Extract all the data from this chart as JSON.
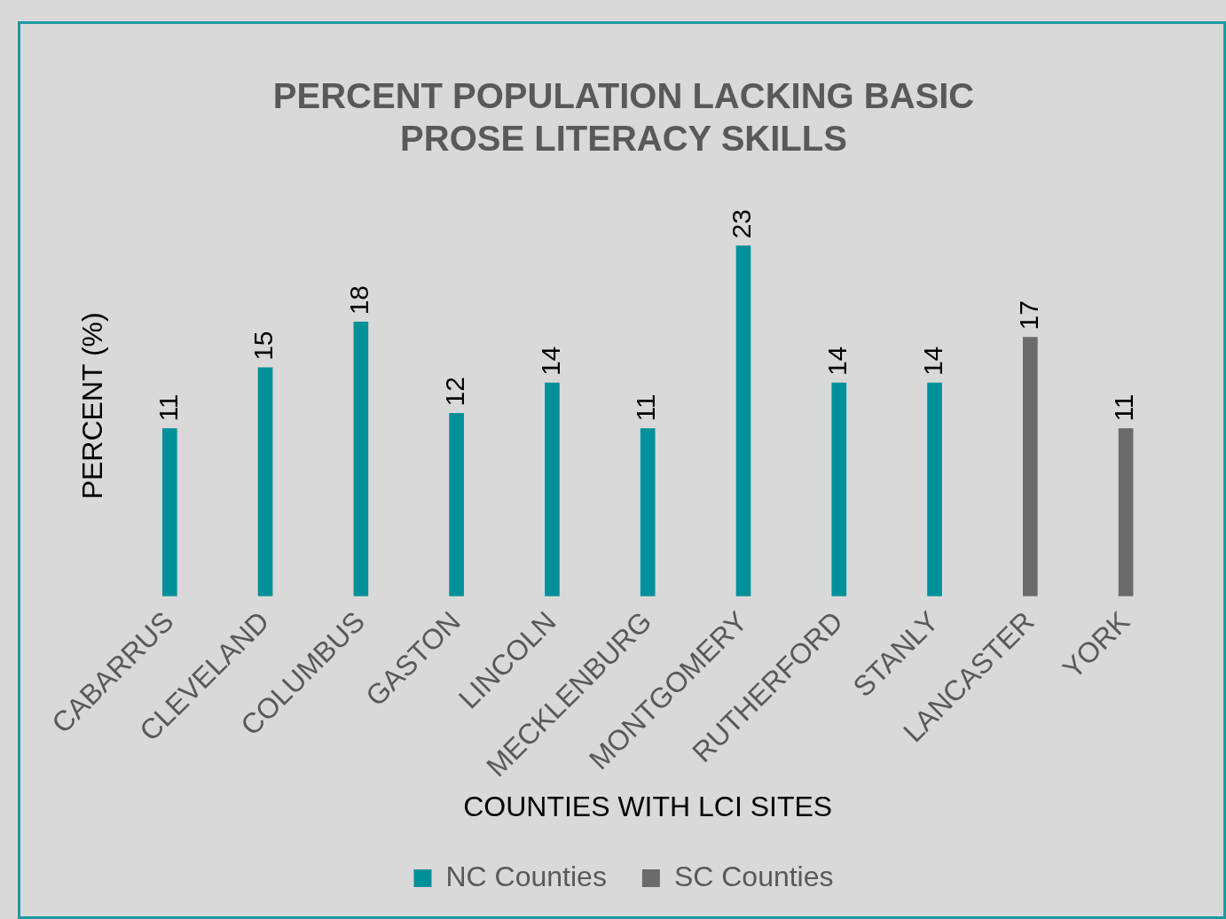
{
  "chart_data": {
    "type": "bar",
    "title": "PERCENT POPULATION LACKING BASIC PROSE LITERACY SKILLS",
    "xlabel": "COUNTIES WITH LCI SITES",
    "ylabel": "PERCENT (%)",
    "categories": [
      "CABARRUS",
      "CLEVELAND",
      "COLUMBUS",
      "GASTON",
      "LINCOLN",
      "MECKLENBURG",
      "MONTGOMERY",
      "RUTHERFORD",
      "STANLY",
      "LANCASTER",
      "YORK"
    ],
    "series": [
      {
        "name": "NC Counties",
        "color": "#00909a",
        "values": [
          11,
          15,
          18,
          12,
          14,
          11,
          23,
          14,
          14,
          null,
          null
        ]
      },
      {
        "name": "SC Counties",
        "color": "#6b6b6b",
        "values": [
          null,
          null,
          null,
          null,
          null,
          null,
          null,
          null,
          null,
          17,
          11
        ]
      }
    ],
    "data_labels": true,
    "legend": "bottom",
    "tick_labels": "x"
  }
}
